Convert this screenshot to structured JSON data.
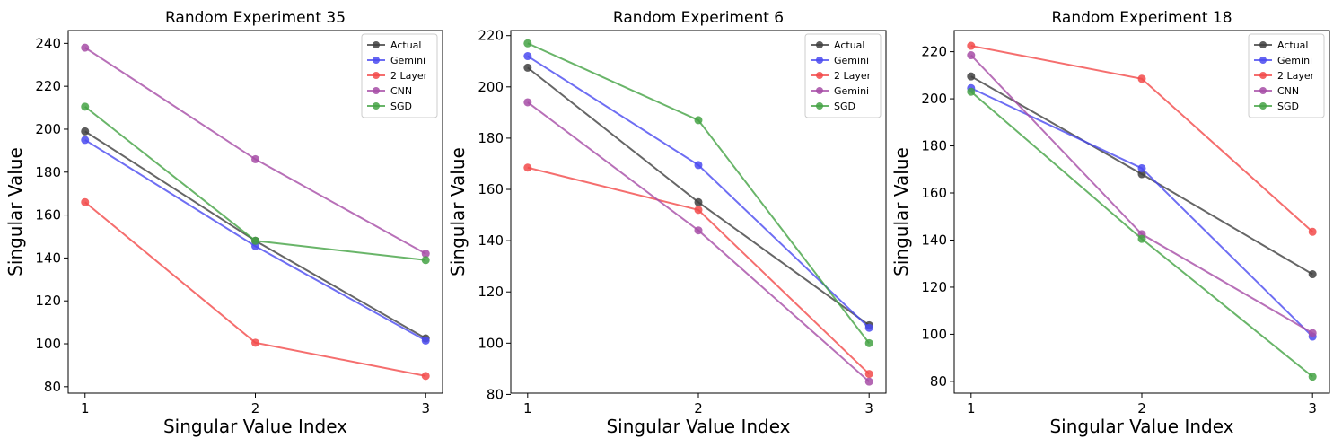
{
  "chart_data": [
    {
      "type": "line",
      "title": "Random Experiment 35",
      "xlabel": "Singular Value Index",
      "ylabel": "Singular Value",
      "x": [
        1,
        2,
        3
      ],
      "ylim": [
        77,
        246
      ],
      "yticks": [
        80,
        100,
        120,
        140,
        160,
        180,
        200,
        220,
        240
      ],
      "legend_position": "top-right",
      "series": [
        {
          "name": "Actual",
          "color": "#404040",
          "values": [
            199,
            148,
            102.5
          ]
        },
        {
          "name": "Gemini",
          "color": "#4a4af0",
          "values": [
            195,
            145.5,
            101.5
          ]
        },
        {
          "name": "2 Layer",
          "color": "#f24a4a",
          "values": [
            166,
            100.5,
            85
          ]
        },
        {
          "name": "CNN",
          "color": "#a64ca6",
          "values": [
            238,
            186,
            142
          ]
        },
        {
          "name": "SGD",
          "color": "#44a244",
          "values": [
            210.5,
            148,
            139
          ]
        }
      ]
    },
    {
      "type": "line",
      "title": "Random Experiment 6",
      "xlabel": "Singular Value Index",
      "ylabel": "Singular Value",
      "x": [
        1,
        2,
        3
      ],
      "ylim": [
        80.5,
        222
      ],
      "yticks": [
        80,
        100,
        120,
        140,
        160,
        180,
        200,
        220
      ],
      "legend_position": "top-right",
      "series": [
        {
          "name": "Actual",
          "color": "#404040",
          "values": [
            207.5,
            155,
            107
          ]
        },
        {
          "name": "Gemini",
          "color": "#4a4af0",
          "values": [
            212,
            169.5,
            106
          ]
        },
        {
          "name": "2 Layer",
          "color": "#f24a4a",
          "values": [
            168.5,
            152,
            88
          ]
        },
        {
          "name": "Gemini",
          "color": "#a64ca6",
          "values": [
            194,
            144,
            85
          ]
        },
        {
          "name": "SGD",
          "color": "#44a244",
          "values": [
            217,
            187,
            100
          ]
        }
      ]
    },
    {
      "type": "line",
      "title": "Random Experiment 18",
      "xlabel": "Singular Value Index",
      "ylabel": "Singular Value",
      "x": [
        1,
        2,
        3
      ],
      "ylim": [
        75,
        229
      ],
      "yticks": [
        80,
        100,
        120,
        140,
        160,
        180,
        200,
        220
      ],
      "legend_position": "top-right",
      "series": [
        {
          "name": "Actual",
          "color": "#404040",
          "values": [
            209.5,
            168,
            125.5
          ]
        },
        {
          "name": "Gemini",
          "color": "#4a4af0",
          "values": [
            204.5,
            170.5,
            99
          ]
        },
        {
          "name": "2 Layer",
          "color": "#f24a4a",
          "values": [
            222.5,
            208.5,
            143.5
          ]
        },
        {
          "name": "CNN",
          "color": "#a64ca6",
          "values": [
            218.5,
            142.5,
            100.5
          ]
        },
        {
          "name": "SGD",
          "color": "#44a244",
          "values": [
            203,
            140.5,
            82
          ]
        }
      ]
    }
  ]
}
